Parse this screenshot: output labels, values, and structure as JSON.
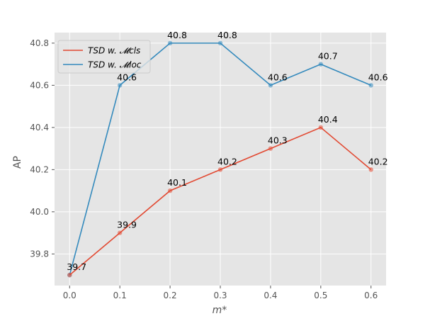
{
  "chart_data": {
    "type": "line",
    "xlabel": "m*",
    "ylabel": "AP",
    "x": [
      0.0,
      0.1,
      0.2,
      0.3,
      0.4,
      0.5,
      0.6
    ],
    "x_tick_labels": [
      "0.0",
      "0.1",
      "0.2",
      "0.3",
      "0.4",
      "0.5",
      "0.6"
    ],
    "y_ticks": [
      39.8,
      40.0,
      40.2,
      40.4,
      40.6,
      40.8
    ],
    "y_tick_labels": [
      "39.8",
      "40.0",
      "40.2",
      "40.4",
      "40.6",
      "40.8"
    ],
    "xlim": [
      -0.03,
      0.63
    ],
    "ylim": [
      39.65,
      40.85
    ],
    "grid": true,
    "legend_position": "upper-left",
    "series": [
      {
        "name": "TSD w. 𝓜cls",
        "color": "#E24A33",
        "values": [
          39.7,
          39.9,
          40.1,
          40.2,
          40.3,
          40.4,
          40.2
        ],
        "labels": [
          "39.7",
          "39.9",
          "40.1",
          "40.2",
          "40.3",
          "40.4",
          "40.2"
        ]
      },
      {
        "name": "TSD w. 𝓜loc",
        "color": "#348ABD",
        "values": [
          39.7,
          40.6,
          40.8,
          40.8,
          40.6,
          40.7,
          40.6
        ],
        "labels": [
          "",
          "40.6",
          "40.8",
          "40.8",
          "40.6",
          "40.7",
          "40.6"
        ]
      }
    ]
  }
}
